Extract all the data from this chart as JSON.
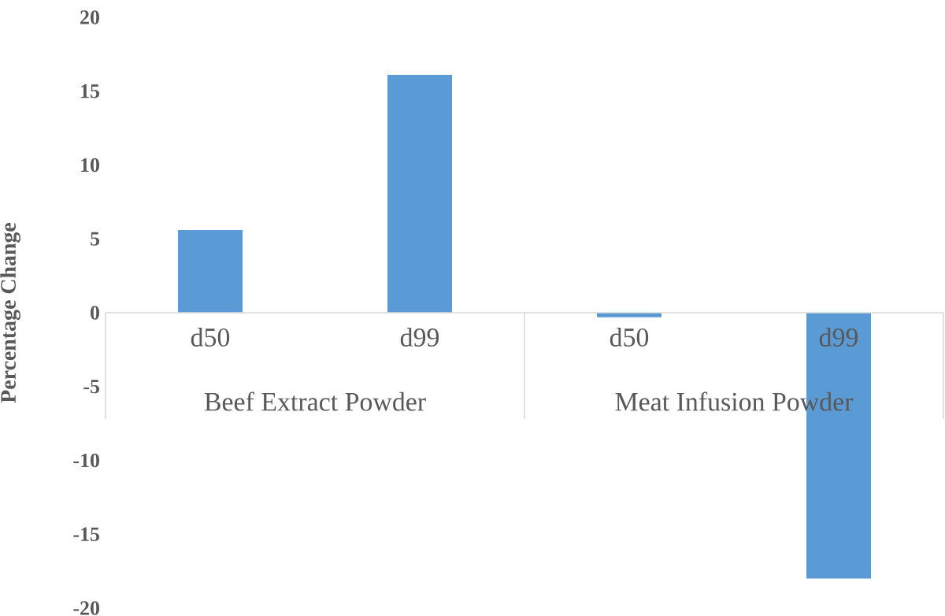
{
  "chart_data": {
    "type": "bar",
    "ylabel": "Percentage Change",
    "categories": [
      "d50",
      "d99",
      "d50",
      "d99"
    ],
    "values": [
      5.6,
      16.1,
      -0.3,
      -18.0
    ],
    "color": "#5b9bd5",
    "ylim": [
      -20,
      20
    ],
    "yticks": [
      -20,
      -15,
      -10,
      -5,
      0,
      5,
      10,
      15,
      20
    ],
    "annotations": [
      "Beef Extract Powder",
      "Meat Infusion Powder"
    ]
  }
}
